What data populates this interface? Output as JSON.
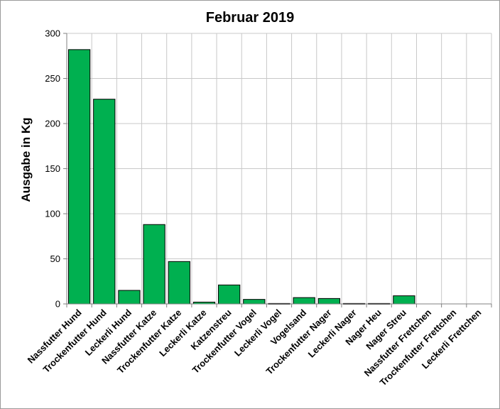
{
  "chart_data": {
    "type": "bar",
    "title": "Februar 2019",
    "xlabel": "",
    "ylabel": "Ausgabe in Kg",
    "ylim": [
      0,
      300
    ],
    "yticks": [
      0,
      50,
      100,
      150,
      200,
      250,
      300
    ],
    "grid": true,
    "bar_color": "#00b050",
    "categories": [
      "Nassfutter Hund",
      "Trockenfutter Hund",
      "Leckerli Hund",
      "Nassfutter Katze",
      "Trockenfutter Katze",
      "Leckerli Katze",
      "Katzenstreu",
      "Trockenfutter Vogel",
      "Leckerli Vogel",
      "Vogelsand",
      "Trockenfutter Nager",
      "Leckerli Nager",
      "Nager Heu",
      "Nager Streu",
      "Nassfutter Frettchen",
      "Trockenfutter Frettchen",
      "Leckerli Frettchen"
    ],
    "values": [
      282,
      227,
      15,
      88,
      47,
      2,
      21,
      5,
      0.5,
      7,
      6,
      0.5,
      0.5,
      9,
      0,
      0,
      0
    ]
  }
}
